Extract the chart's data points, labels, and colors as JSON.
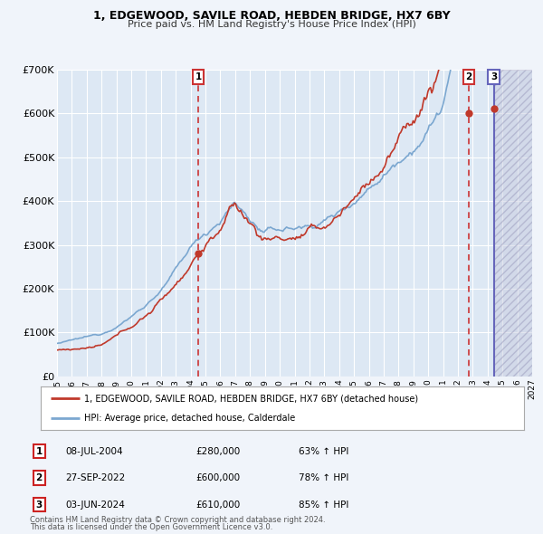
{
  "title": "1, EDGEWOOD, SAVILE ROAD, HEBDEN BRIDGE, HX7 6BY",
  "subtitle": "Price paid vs. HM Land Registry's House Price Index (HPI)",
  "hpi_label": "HPI: Average price, detached house, Calderdale",
  "property_label": "1, EDGEWOOD, SAVILE ROAD, HEBDEN BRIDGE, HX7 6BY (detached house)",
  "footer_line1": "Contains HM Land Registry data © Crown copyright and database right 2024.",
  "footer_line2": "This data is licensed under the Open Government Licence v3.0.",
  "sales": [
    {
      "num": 1,
      "date_label": "08-JUL-2004",
      "price": 280000,
      "price_str": "£280,000",
      "pct": "63%",
      "year": 2004.52
    },
    {
      "num": 2,
      "date_label": "27-SEP-2022",
      "price": 600000,
      "price_str": "£600,000",
      "pct": "78%",
      "year": 2022.74
    },
    {
      "num": 3,
      "date_label": "03-JUN-2024",
      "price": 610000,
      "price_str": "£610,000",
      "pct": "85%",
      "year": 2024.42
    }
  ],
  "hpi_color": "#7ba7d0",
  "property_color": "#c0392b",
  "vline_color": "#cc3333",
  "vline3_color": "#6666bb",
  "dot_color": "#c0392b",
  "background_color": "#f0f4fa",
  "plot_bg": "#dde8f4",
  "grid_color": "#ffffff",
  "hatch_color": "#b0b8cc",
  "ylim": [
    0,
    700000
  ],
  "xlim_start": 1995,
  "xlim_end": 2027,
  "yticks": [
    0,
    100000,
    200000,
    300000,
    400000,
    500000,
    600000,
    700000
  ],
  "ytick_labels": [
    "£0",
    "£100K",
    "£200K",
    "£300K",
    "£400K",
    "£500K",
    "£600K",
    "£700K"
  ],
  "xticks": [
    1995,
    1996,
    1997,
    1998,
    1999,
    2000,
    2001,
    2002,
    2003,
    2004,
    2005,
    2006,
    2007,
    2008,
    2009,
    2010,
    2011,
    2012,
    2013,
    2014,
    2015,
    2016,
    2017,
    2018,
    2019,
    2020,
    2021,
    2022,
    2023,
    2024,
    2025,
    2026,
    2027
  ]
}
